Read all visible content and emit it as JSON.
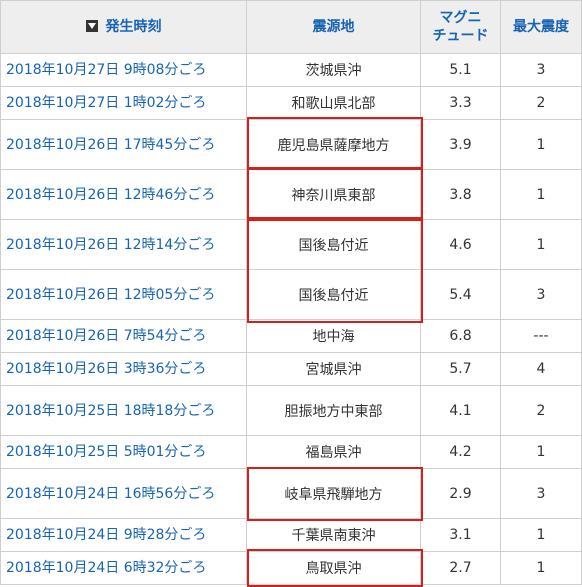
{
  "headers": {
    "time": "発生時刻",
    "place": "震源地",
    "magnitude_line1": "マグニ",
    "magnitude_line2": "チュード",
    "intensity": "最大震度"
  },
  "rows": [
    {
      "time": "2018年10月27日 9時08分ごろ",
      "place": "茨城県沖",
      "magnitude": "5.1",
      "intensity": "3"
    },
    {
      "time": "2018年10月27日 1時02分ごろ",
      "place": "和歌山県北部",
      "magnitude": "3.3",
      "intensity": "2"
    },
    {
      "time": "2018年10月26日 17時45分ごろ",
      "place": "鹿児島県薩摩地方",
      "magnitude": "3.9",
      "intensity": "1"
    },
    {
      "time": "2018年10月26日 12時46分ごろ",
      "place": "神奈川県東部",
      "magnitude": "3.8",
      "intensity": "1"
    },
    {
      "time": "2018年10月26日 12時14分ごろ",
      "place": "国後島付近",
      "magnitude": "4.6",
      "intensity": "1"
    },
    {
      "time": "2018年10月26日 12時05分ごろ",
      "place": "国後島付近",
      "magnitude": "5.4",
      "intensity": "3"
    },
    {
      "time": "2018年10月26日 7時54分ごろ",
      "place": "地中海",
      "magnitude": "6.8",
      "intensity": "---"
    },
    {
      "time": "2018年10月26日 3時36分ごろ",
      "place": "宮城県沖",
      "magnitude": "5.7",
      "intensity": "4"
    },
    {
      "time": "2018年10月25日 18時18分ごろ",
      "place": "胆振地方中東部",
      "magnitude": "4.1",
      "intensity": "2"
    },
    {
      "time": "2018年10月25日 5時01分ごろ",
      "place": "福島県沖",
      "magnitude": "4.2",
      "intensity": "1"
    },
    {
      "time": "2018年10月24日 16時56分ごろ",
      "place": "岐阜県飛騨地方",
      "magnitude": "2.9",
      "intensity": "3"
    },
    {
      "time": "2018年10月24日 9時28分ごろ",
      "place": "千葉県南東沖",
      "magnitude": "3.1",
      "intensity": "1"
    },
    {
      "time": "2018年10月24日 6時32分ごろ",
      "place": "鳥取県沖",
      "magnitude": "2.7",
      "intensity": "1"
    }
  ],
  "colors": {
    "link": "#1764b4",
    "header_background": "#eeeeee",
    "highlight_border": "#d0211c",
    "grid": "#cfcfcf"
  },
  "icons": {
    "sort": "sort-descending-icon"
  }
}
